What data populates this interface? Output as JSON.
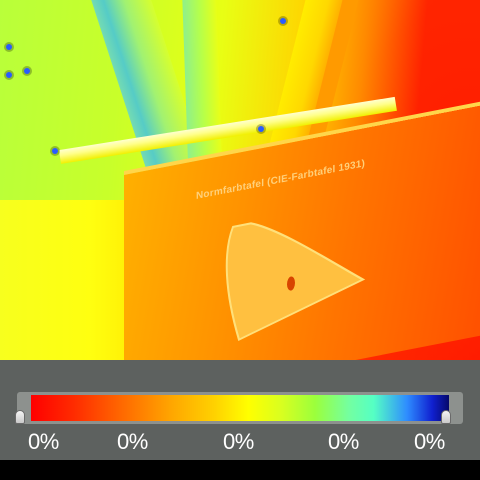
{
  "thermal_view": {
    "poster": {
      "title": "Normfarbtafel (CIE-Farbtafel 1931)"
    }
  },
  "scale": {
    "palette": [
      "#ff0000",
      "#ff6a00",
      "#ffd200",
      "#ffff00",
      "#9bff3c",
      "#55ffc4",
      "#2e8cff",
      "#05086a"
    ],
    "labels": [
      "0%",
      "0%",
      "0%",
      "0%",
      "0%"
    ],
    "range_min": "0%",
    "range_max": "0%"
  }
}
